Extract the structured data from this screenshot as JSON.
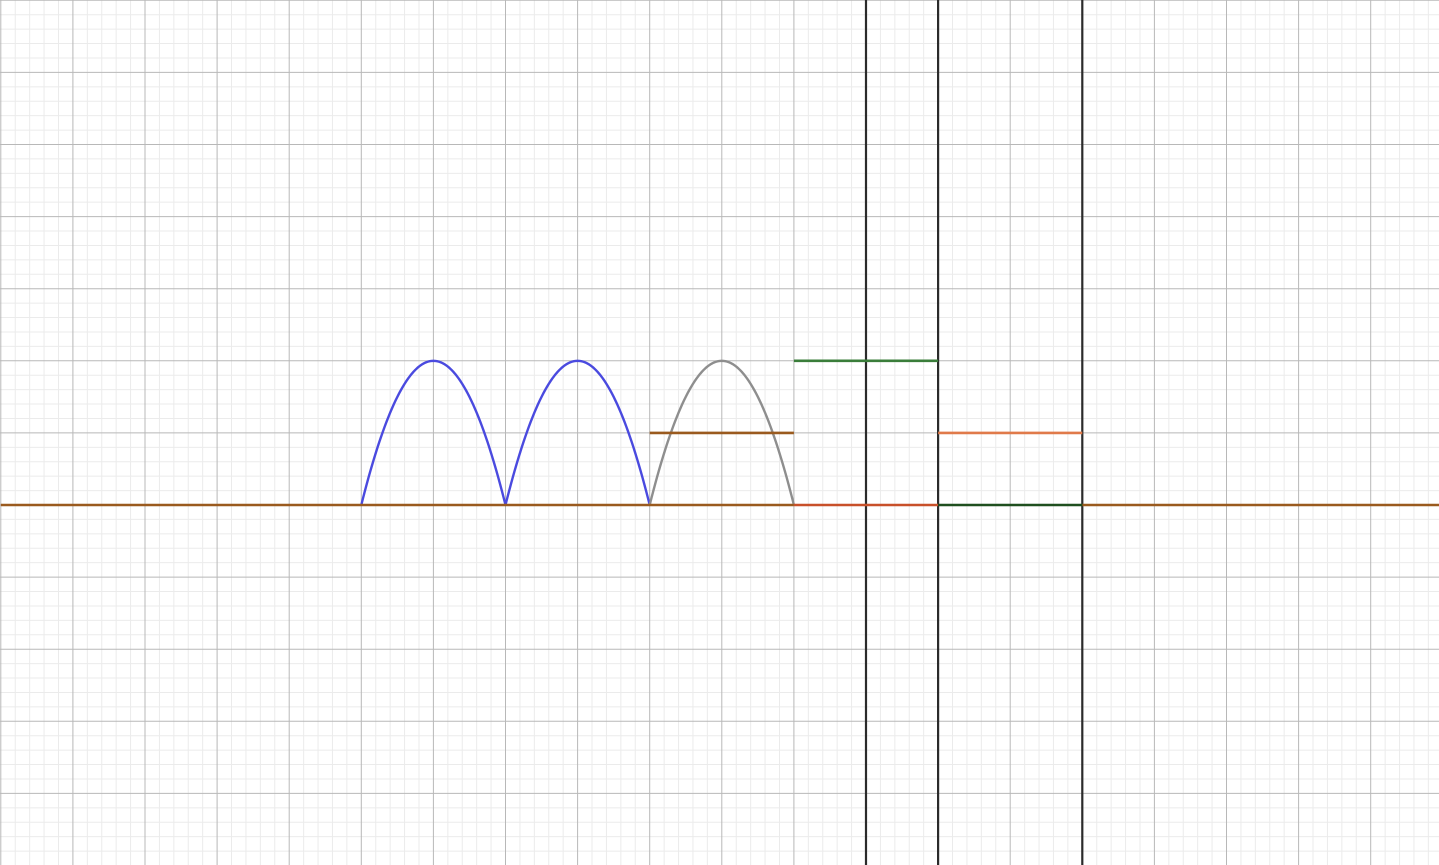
{
  "chart_data": {
    "type": "line",
    "title": "",
    "xlabel": "",
    "ylabel": "",
    "xlim": [
      -12,
      8
    ],
    "ylim": [
      -5,
      7
    ],
    "grid": true,
    "minor_subdivisions": 5,
    "axis_labels_visible": false,
    "colors": {
      "major_grid": "#b8b8b8",
      "minor_grid": "#ebebeb",
      "vertical_lines": "#2b2b2b"
    },
    "vertical_lines": [
      0,
      1,
      3
    ],
    "series": [
      {
        "kind": "arches",
        "color": "#4a4adf",
        "peak": 2,
        "arches": [
          [
            -7,
            -5
          ],
          [
            -5,
            -3
          ]
        ]
      },
      {
        "kind": "arches",
        "color": "#8e8e8e",
        "peak": 2,
        "arches": [
          [
            -3,
            -1
          ]
        ]
      },
      {
        "kind": "segments",
        "color": "#9a5a1e",
        "segments": [
          [
            -12,
            0,
            -1,
            0
          ],
          [
            3,
            0,
            8,
            0
          ],
          [
            -3,
            1,
            -1,
            1
          ]
        ]
      },
      {
        "kind": "segments",
        "color": "#c8502a",
        "segments": [
          [
            -1,
            0,
            1,
            0
          ]
        ]
      },
      {
        "kind": "segments",
        "color": "#3a7d3a",
        "segments": [
          [
            -1,
            2,
            1,
            2
          ]
        ]
      },
      {
        "kind": "segments",
        "color": "#e07a4a",
        "segments": [
          [
            1,
            1,
            3,
            1
          ]
        ]
      },
      {
        "kind": "segments",
        "color": "#1f4f1f",
        "segments": [
          [
            1,
            0,
            3,
            0
          ]
        ]
      }
    ]
  }
}
